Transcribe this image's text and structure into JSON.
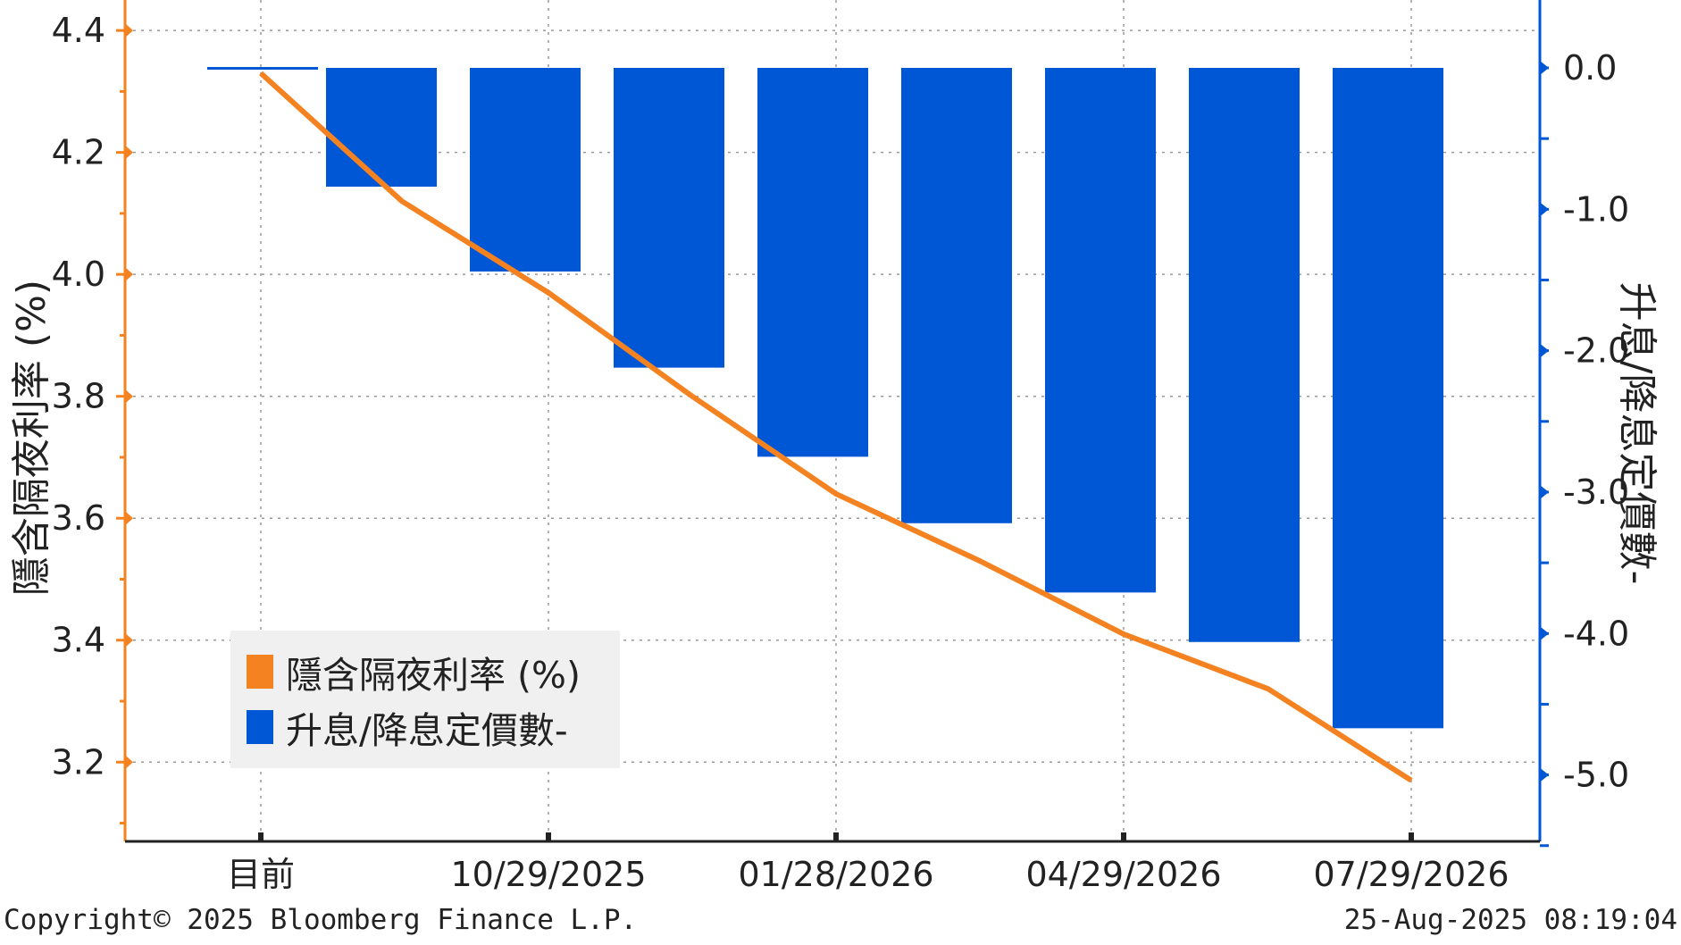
{
  "chart_data": {
    "type": "bar+line",
    "categories": [
      "目前",
      "",
      "10/29/2025",
      "",
      "01/28/2026",
      "",
      "04/29/2026",
      "",
      "07/29/2026"
    ],
    "series": [
      {
        "name": "隱含隔夜利率 (%)",
        "type": "line",
        "axis": "left",
        "color": "#F58220",
        "values": [
          4.33,
          4.12,
          3.97,
          3.8,
          3.64,
          3.53,
          3.41,
          3.32,
          3.17
        ]
      },
      {
        "name": "升息/降息定價數-",
        "type": "bar",
        "axis": "right",
        "color": "#0057D6",
        "values": [
          0.0,
          -0.84,
          -1.44,
          -2.12,
          -2.75,
          -3.22,
          -3.71,
          -4.06,
          -4.67
        ]
      }
    ],
    "left_axis": {
      "label": "隱含隔夜利率 (%)",
      "ylim": [
        3.07,
        4.45
      ],
      "ticks": [
        "3.2",
        "3.4",
        "3.6",
        "3.8",
        "4.0",
        "4.2",
        "4.4"
      ],
      "tick_values": [
        3.2,
        3.4,
        3.6,
        3.8,
        4.0,
        4.2,
        4.4
      ]
    },
    "right_axis": {
      "label": "升息/降息定價數-",
      "ylim": [
        -5.47,
        0.48
      ],
      "ticks": [
        "0.0",
        "-1.0",
        "-2.0",
        "-3.0",
        "-4.0",
        "-5.0"
      ],
      "tick_values": [
        0,
        -1,
        -2,
        -3,
        -4,
        -5
      ]
    },
    "x_tick_labels": [
      "目前",
      "10/29/2025",
      "01/28/2026",
      "04/29/2026",
      "07/29/2026"
    ],
    "grid": true,
    "legend_position": "bottom-left"
  },
  "footer": {
    "copyright": "Copyright© 2025 Bloomberg Finance L.P.",
    "timestamp": "25-Aug-2025 08:19:04"
  },
  "legend": {
    "line_label": "隱含隔夜利率 (%)",
    "bar_label": "升息/降息定價數-"
  },
  "colors": {
    "line": "#F58220",
    "bar": "#0057D6",
    "grid": "#999999",
    "legend_bg": "#f0f0f0"
  }
}
